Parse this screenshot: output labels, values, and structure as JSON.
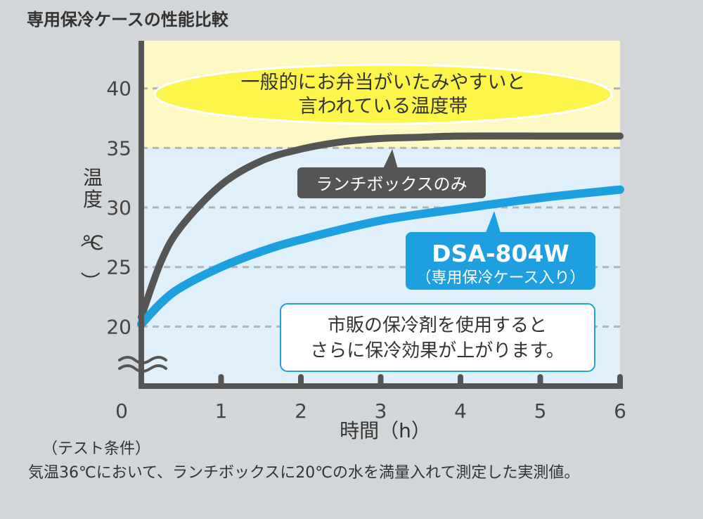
{
  "caption": "専用保冷ケースの性能比較",
  "test_conditions": {
    "heading": "（テスト条件）",
    "text": "気温36℃において、ランチボックスに20℃の水を満量入れて測定した実測値。"
  },
  "chart_data": {
    "type": "line",
    "title": "",
    "xlabel": "時間（h）",
    "ylabel": "温度（℃）",
    "xlim": [
      0,
      6
    ],
    "ylim": [
      15,
      44
    ],
    "x_ticks": [
      "0",
      "1",
      "2",
      "3",
      "4",
      "5",
      "6"
    ],
    "y_ticks": [
      "20",
      "25",
      "30",
      "35",
      "40"
    ],
    "grid": true,
    "axis_break": true,
    "bands": [
      {
        "from": 35,
        "to": 44,
        "color": "#fdf8c4",
        "label": "一般的にお弁当がいたみやすいと\n言われている温度帯"
      },
      {
        "from": 15,
        "to": 35,
        "color": "#dff0fa"
      }
    ],
    "series": [
      {
        "name": "ランチボックスのみ",
        "color": "#555555",
        "x": [
          0,
          0.25,
          0.5,
          1,
          1.5,
          2,
          2.5,
          3,
          3.5,
          4,
          5,
          6
        ],
        "y": [
          20.8,
          25.5,
          28.4,
          31.9,
          33.9,
          34.9,
          35.5,
          35.8,
          35.9,
          36.0,
          36.0,
          36.0
        ]
      },
      {
        "name": "DSA-804W",
        "subname": "（専用保冷ケース入り）",
        "color": "#1ea0e0",
        "x": [
          0,
          0.25,
          0.5,
          1,
          1.5,
          2,
          3,
          4,
          5,
          6
        ],
        "y": [
          20.2,
          22.0,
          23.3,
          25.0,
          26.3,
          27.3,
          28.9,
          29.9,
          30.8,
          31.5
        ]
      }
    ],
    "annotations": [
      {
        "text": "市販の保冷剤を使用すると\nさらに保冷効果が上がります。"
      }
    ]
  }
}
